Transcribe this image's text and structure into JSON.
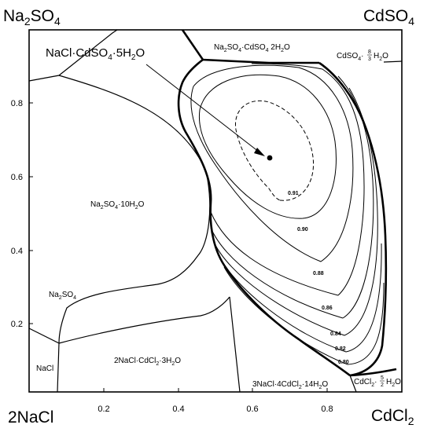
{
  "corners": {
    "top_left": {
      "main": "Na",
      "sub1": "2",
      "mid": "SO",
      "sub2": "4"
    },
    "top_right": {
      "main": "CdSO",
      "sub": "4"
    },
    "bottom_left": {
      "main": "2NaCl"
    },
    "bottom_right": {
      "main": "CdCl",
      "sub": "2"
    }
  },
  "axes": {
    "x_ticks": [
      "0.2",
      "0.4",
      "0.6",
      "0.8"
    ],
    "y_ticks": [
      "0.2",
      "0.4",
      "0.6",
      "0.8"
    ]
  },
  "fields": {
    "na2so4_cdso4": {
      "a": "Na",
      "a_sub": "2",
      "b": "SO",
      "b_sub": "4",
      "c": "·CdSO",
      "c_sub": "4",
      "d": " 2H",
      "d_sub": "2",
      "e": "O"
    },
    "cdso4_hydrate": {
      "a": "CdSO",
      "a_sub": "4",
      "b": "·",
      "num": "8",
      "den": "3",
      "c": "H",
      "c_sub": "2",
      "d": "O"
    },
    "na2so4_10h2o": {
      "a": "Na",
      "a_sub": "2",
      "b": "SO",
      "b_sub": "4",
      "c": "·10H",
      "c_sub": "2",
      "d": "O"
    },
    "na2so4": {
      "a": "Na",
      "a_sub": "2",
      "b": "SO",
      "b_sub": "4"
    },
    "nacl": {
      "a": "NaCl"
    },
    "nacl2_cdcl2_3h2o": {
      "a": "2NaCl·CdCl",
      "a_sub": "2",
      "b": "·3H",
      "b_sub": "2",
      "c": "O"
    },
    "nacl3_cdcl2_14h2o": {
      "a": "3NaCl·4CdCl",
      "a_sub": "2",
      "b": "·14H",
      "b_sub": "2",
      "c": "O"
    },
    "cdcl2_hydrate": {
      "a": "CdCl",
      "a_sub": "2",
      "b": "·",
      "num": "5",
      "den": "2",
      "c": "H",
      "c_sub": "2",
      "d": "O"
    }
  },
  "callout": {
    "a": "NaCl·CdSO",
    "a_sub": "4",
    "b": "·5H",
    "b_sub": "2",
    "c": "O"
  },
  "contours": [
    "0.91",
    "0.90",
    "0.88",
    "0.86",
    "0.84",
    "0.82",
    "0.80"
  ],
  "colors": {
    "line": "#000000",
    "background": "#ffffff"
  }
}
